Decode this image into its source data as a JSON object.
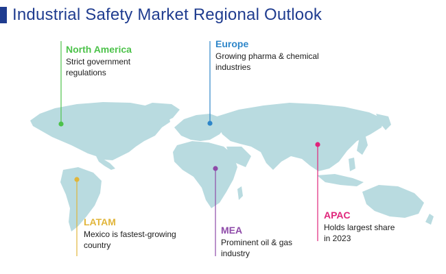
{
  "title": "Industrial Safety Market Regional Outlook",
  "colors": {
    "title": "#1f3c8f",
    "map": "#b9dbe0",
    "north_america": "#4cc24a",
    "europe": "#2e86c9",
    "latam": "#e1b53a",
    "mea": "#8e4aa8",
    "apac": "#e0247a"
  },
  "regions": {
    "north_america": {
      "name": "North America",
      "line1": "Strict government",
      "line2": "regulations"
    },
    "europe": {
      "name": "Europe",
      "line1": "Growing pharma & chemical",
      "line2": "industries"
    },
    "latam": {
      "name": "LATAM",
      "line1": "Mexico is fastest-growing",
      "line2": "country"
    },
    "mea": {
      "name": "MEA",
      "line1": "Prominent oil & gas",
      "line2": "industry"
    },
    "apac": {
      "name": "APAC",
      "line1": "Holds largest share",
      "line2": "in 2023"
    }
  }
}
